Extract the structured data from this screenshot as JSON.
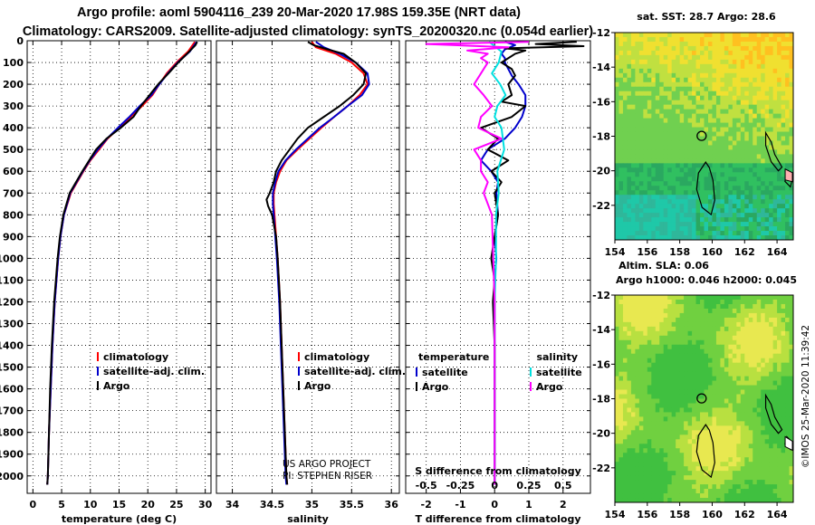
{
  "title_line1": "Argo profile: aoml 5904116_239 20-Mar-2020 17.98S 159.35E (NRT data)",
  "title_line2": "Climatology: CARS2009. Satellite-adjusted climatology: synTS_20200320.nc (0.054d earlier)",
  "colors": {
    "climatology": "#ff0000",
    "satellite": "#0000cc",
    "argo": "#000000",
    "sat_salinity": "#00e0e0",
    "argo_salinity_diff": "#ff00ff"
  },
  "chart_data": [
    {
      "type": "line",
      "id": "temperature",
      "xlabel": "temperature (deg C)",
      "xlim": [
        -1,
        31
      ],
      "xticks": [
        0,
        5,
        10,
        15,
        20,
        25,
        30
      ],
      "ylim": [
        2080,
        0
      ],
      "yticks": [
        0,
        100,
        200,
        300,
        400,
        500,
        600,
        700,
        800,
        900,
        1000,
        1100,
        1200,
        1300,
        1400,
        1500,
        1600,
        1700,
        1800,
        1900,
        2000
      ],
      "legend": [
        "climatology",
        "satellite-adj. clim.",
        "Argo"
      ],
      "series": [
        {
          "name": "climatology",
          "color": "#ff0000",
          "depth": [
            5,
            50,
            100,
            150,
            200,
            250,
            300,
            350,
            400,
            450,
            500,
            550,
            600,
            700,
            800,
            900,
            1000,
            1200,
            1400,
            1600,
            1800,
            2000,
            2040
          ],
          "values": [
            28.2,
            27.0,
            25.0,
            23.3,
            22.0,
            20.8,
            19.0,
            17.0,
            15.0,
            13.0,
            11.5,
            10.0,
            8.8,
            6.6,
            5.4,
            4.8,
            4.4,
            3.8,
            3.4,
            3.1,
            2.8,
            2.6,
            2.5
          ]
        },
        {
          "name": "satellite-adj. clim.",
          "color": "#0000cc",
          "depth": [
            5,
            50,
            100,
            150,
            200,
            250,
            300,
            350,
            400,
            450,
            500,
            550,
            600,
            700,
            800,
            900,
            1000,
            1200,
            1400,
            1600,
            1800,
            2000,
            2040
          ],
          "values": [
            28.5,
            27.3,
            25.2,
            23.5,
            22.0,
            20.6,
            18.6,
            16.8,
            14.8,
            12.9,
            11.3,
            9.9,
            8.7,
            6.5,
            5.4,
            4.8,
            4.4,
            3.8,
            3.4,
            3.1,
            2.8,
            2.6,
            2.5
          ]
        },
        {
          "name": "Argo",
          "color": "#000000",
          "depth": [
            5,
            20,
            50,
            100,
            150,
            200,
            250,
            300,
            350,
            400,
            450,
            500,
            550,
            600,
            700,
            800,
            900,
            1000,
            1200,
            1400,
            1600,
            1800,
            2000,
            2040
          ],
          "values": [
            28.6,
            28.3,
            27.2,
            25.3,
            23.6,
            21.8,
            20.3,
            18.8,
            17.5,
            15.3,
            12.8,
            11.0,
            9.8,
            8.6,
            6.4,
            5.3,
            4.7,
            4.3,
            3.7,
            3.3,
            3.0,
            2.8,
            2.6,
            2.5
          ]
        }
      ]
    },
    {
      "type": "line",
      "id": "salinity",
      "xlabel": "salinity",
      "xlim": [
        33.8,
        36.1
      ],
      "xticks": [
        34,
        34.5,
        35,
        35.5,
        36
      ],
      "xticklabels": [
        "34",
        "34.5",
        "35",
        "35.5",
        "36"
      ],
      "ylim": [
        2080,
        0
      ],
      "legend": [
        "climatology",
        "satellite-adj. clim.",
        "Argo"
      ],
      "annotation": [
        "US ARGO PROJECT",
        "PI: STEPHEN RISER"
      ],
      "series": [
        {
          "name": "climatology",
          "color": "#ff0000",
          "depth": [
            5,
            30,
            60,
            100,
            150,
            200,
            250,
            300,
            350,
            400,
            450,
            500,
            550,
            600,
            650,
            700,
            750,
            800,
            900,
            1000,
            1200,
            1400,
            1600,
            1800,
            2000,
            2040
          ],
          "values": [
            35.0,
            35.05,
            35.3,
            35.5,
            35.65,
            35.7,
            35.6,
            35.45,
            35.28,
            35.12,
            34.97,
            34.82,
            34.68,
            34.6,
            34.55,
            34.52,
            34.52,
            34.53,
            34.55,
            34.57,
            34.6,
            34.62,
            34.64,
            34.66,
            34.68,
            34.69
          ]
        },
        {
          "name": "satellite-adj. clim.",
          "color": "#0000cc",
          "depth": [
            5,
            30,
            60,
            100,
            150,
            200,
            250,
            300,
            350,
            400,
            450,
            500,
            550,
            600,
            650,
            700,
            750,
            800,
            900,
            1000,
            1200,
            1400,
            1600,
            1800,
            2000,
            2040
          ],
          "values": [
            35.05,
            35.15,
            35.35,
            35.55,
            35.7,
            35.72,
            35.63,
            35.45,
            35.28,
            35.1,
            34.95,
            34.8,
            34.67,
            34.58,
            34.54,
            34.51,
            34.51,
            34.52,
            34.54,
            34.56,
            34.59,
            34.61,
            34.63,
            34.65,
            34.67,
            34.68
          ]
        },
        {
          "name": "Argo",
          "color": "#000000",
          "depth": [
            5,
            20,
            40,
            60,
            100,
            150,
            200,
            250,
            300,
            350,
            400,
            450,
            500,
            550,
            600,
            650,
            700,
            730,
            760,
            800,
            900,
            1000,
            1200,
            1400,
            1600,
            1800,
            2000,
            2040
          ],
          "values": [
            34.95,
            35.02,
            35.2,
            35.4,
            35.55,
            35.68,
            35.65,
            35.52,
            35.35,
            35.15,
            34.95,
            34.82,
            34.72,
            34.62,
            34.55,
            34.52,
            34.47,
            34.43,
            34.45,
            34.5,
            34.55,
            34.57,
            34.6,
            34.62,
            34.64,
            34.66,
            34.68,
            34.69
          ]
        }
      ]
    },
    {
      "type": "line",
      "id": "difference",
      "xlabel": "T difference from climatology",
      "xlabel_top": "S difference from climatology",
      "xlim": [
        -2.6,
        2.8
      ],
      "xticks": [
        -2,
        -1,
        0,
        1,
        2
      ],
      "s_ticks": [
        -0.5,
        -0.25,
        0,
        0.25,
        0.5
      ],
      "s_ticklabels": [
        "-0.5",
        "-0.25",
        "0",
        "0.25",
        "0.5"
      ],
      "ylim": [
        2080,
        0
      ],
      "legend_left_header": "temperature",
      "legend_right_header": "salinity",
      "legend_left": [
        "satellite",
        "Argo"
      ],
      "legend_right": [
        "satellite",
        "Argo"
      ],
      "series": [
        {
          "name": "T satellite",
          "color": "#0000cc",
          "depth": [
            5,
            20,
            40,
            60,
            80,
            100,
            130,
            160,
            200,
            250,
            300,
            350,
            400,
            450,
            500,
            550,
            600,
            650,
            700,
            800,
            900,
            1000,
            1100,
            1200,
            1300,
            1400,
            1500,
            1600,
            1800,
            2000,
            2040
          ],
          "values": [
            0.3,
            0.6,
            0.3,
            0.2,
            0.3,
            0.3,
            0.4,
            0.5,
            0.7,
            0.9,
            0.9,
            0.8,
            0.6,
            0.3,
            -0.2,
            -0.4,
            -0.1,
            0.1,
            0.05,
            0.1,
            0.0,
            0.05,
            0.0,
            0.0,
            0.0,
            0.0,
            0.0,
            0.0,
            0.0,
            0.0,
            0.0
          ]
        },
        {
          "name": "T Argo",
          "color": "#000000",
          "depth": [
            5,
            15,
            25,
            35,
            45,
            60,
            80,
            100,
            130,
            160,
            200,
            250,
            280,
            300,
            350,
            400,
            450,
            500,
            550,
            600,
            650,
            700,
            800,
            900,
            1000,
            1100,
            1200,
            1400,
            1600,
            1800,
            2000,
            2040
          ],
          "values": [
            2.4,
            1.2,
            2.6,
            0.3,
            0.9,
            0.6,
            0.4,
            0.2,
            0.5,
            0.6,
            0.4,
            0.5,
            0.2,
            0.9,
            0.5,
            -0.4,
            0.1,
            -0.2,
            0.4,
            -0.1,
            0.2,
            0.0,
            0.1,
            0.0,
            -0.1,
            0.0,
            -0.05,
            0.0,
            0.0,
            0.0,
            0.0,
            0.0
          ]
        },
        {
          "name": "S satellite",
          "color": "#00e0e0",
          "depth": [
            5,
            50,
            100,
            150,
            200,
            250,
            300,
            350,
            400,
            500,
            600,
            700,
            800,
            1000,
            1200,
            1500,
            2000,
            2040
          ],
          "values": [
            -0.04,
            0.05,
            0.03,
            -0.02,
            0.04,
            0.08,
            0.02,
            0.0,
            0.05,
            0.07,
            0.02,
            0.03,
            0.01,
            0.01,
            0.0,
            0.0,
            0.0,
            0.0
          ]
        },
        {
          "name": "S Argo",
          "color": "#ff00ff",
          "depth": [
            5,
            15,
            30,
            45,
            60,
            80,
            100,
            150,
            200,
            250,
            300,
            350,
            400,
            450,
            500,
            550,
            600,
            650,
            700,
            800,
            1000,
            1200,
            1400,
            1600,
            1800,
            2000,
            2040
          ],
          "values": [
            0.25,
            -0.5,
            0.1,
            -0.2,
            -0.05,
            -0.1,
            -0.05,
            -0.1,
            -0.15,
            -0.08,
            -0.02,
            -0.1,
            -0.12,
            0.05,
            -0.15,
            -0.1,
            -0.1,
            -0.05,
            -0.08,
            -0.02,
            -0.01,
            0.0,
            0.0,
            0.0,
            0.0,
            0.0,
            0.0
          ]
        }
      ]
    },
    {
      "type": "heatmap",
      "id": "sst_map",
      "title": "sat. SST: 28.7 Argo: 28.6",
      "xticks": [
        154,
        156,
        158,
        160,
        162,
        164
      ],
      "yticks": [
        -12,
        -14,
        -16,
        -18,
        -20,
        -22
      ],
      "xlim": [
        154,
        165
      ],
      "ylim": [
        -24,
        -12
      ],
      "argo_position": [
        159.35,
        -17.98
      ]
    },
    {
      "type": "heatmap",
      "id": "sla_map",
      "title": "Altim. SLA: 0.06",
      "subtitle": "Argo h1000: 0.046 h2000: 0.045",
      "xticks": [
        154,
        156,
        158,
        160,
        162,
        164
      ],
      "yticks": [
        -12,
        -14,
        -16,
        -18,
        -20,
        -22
      ],
      "xlim": [
        154,
        165
      ],
      "ylim": [
        -24,
        -12
      ],
      "argo_position": [
        159.35,
        -17.98
      ]
    }
  ],
  "credit": "©IMOS 25-Mar-2020 11:39:42"
}
